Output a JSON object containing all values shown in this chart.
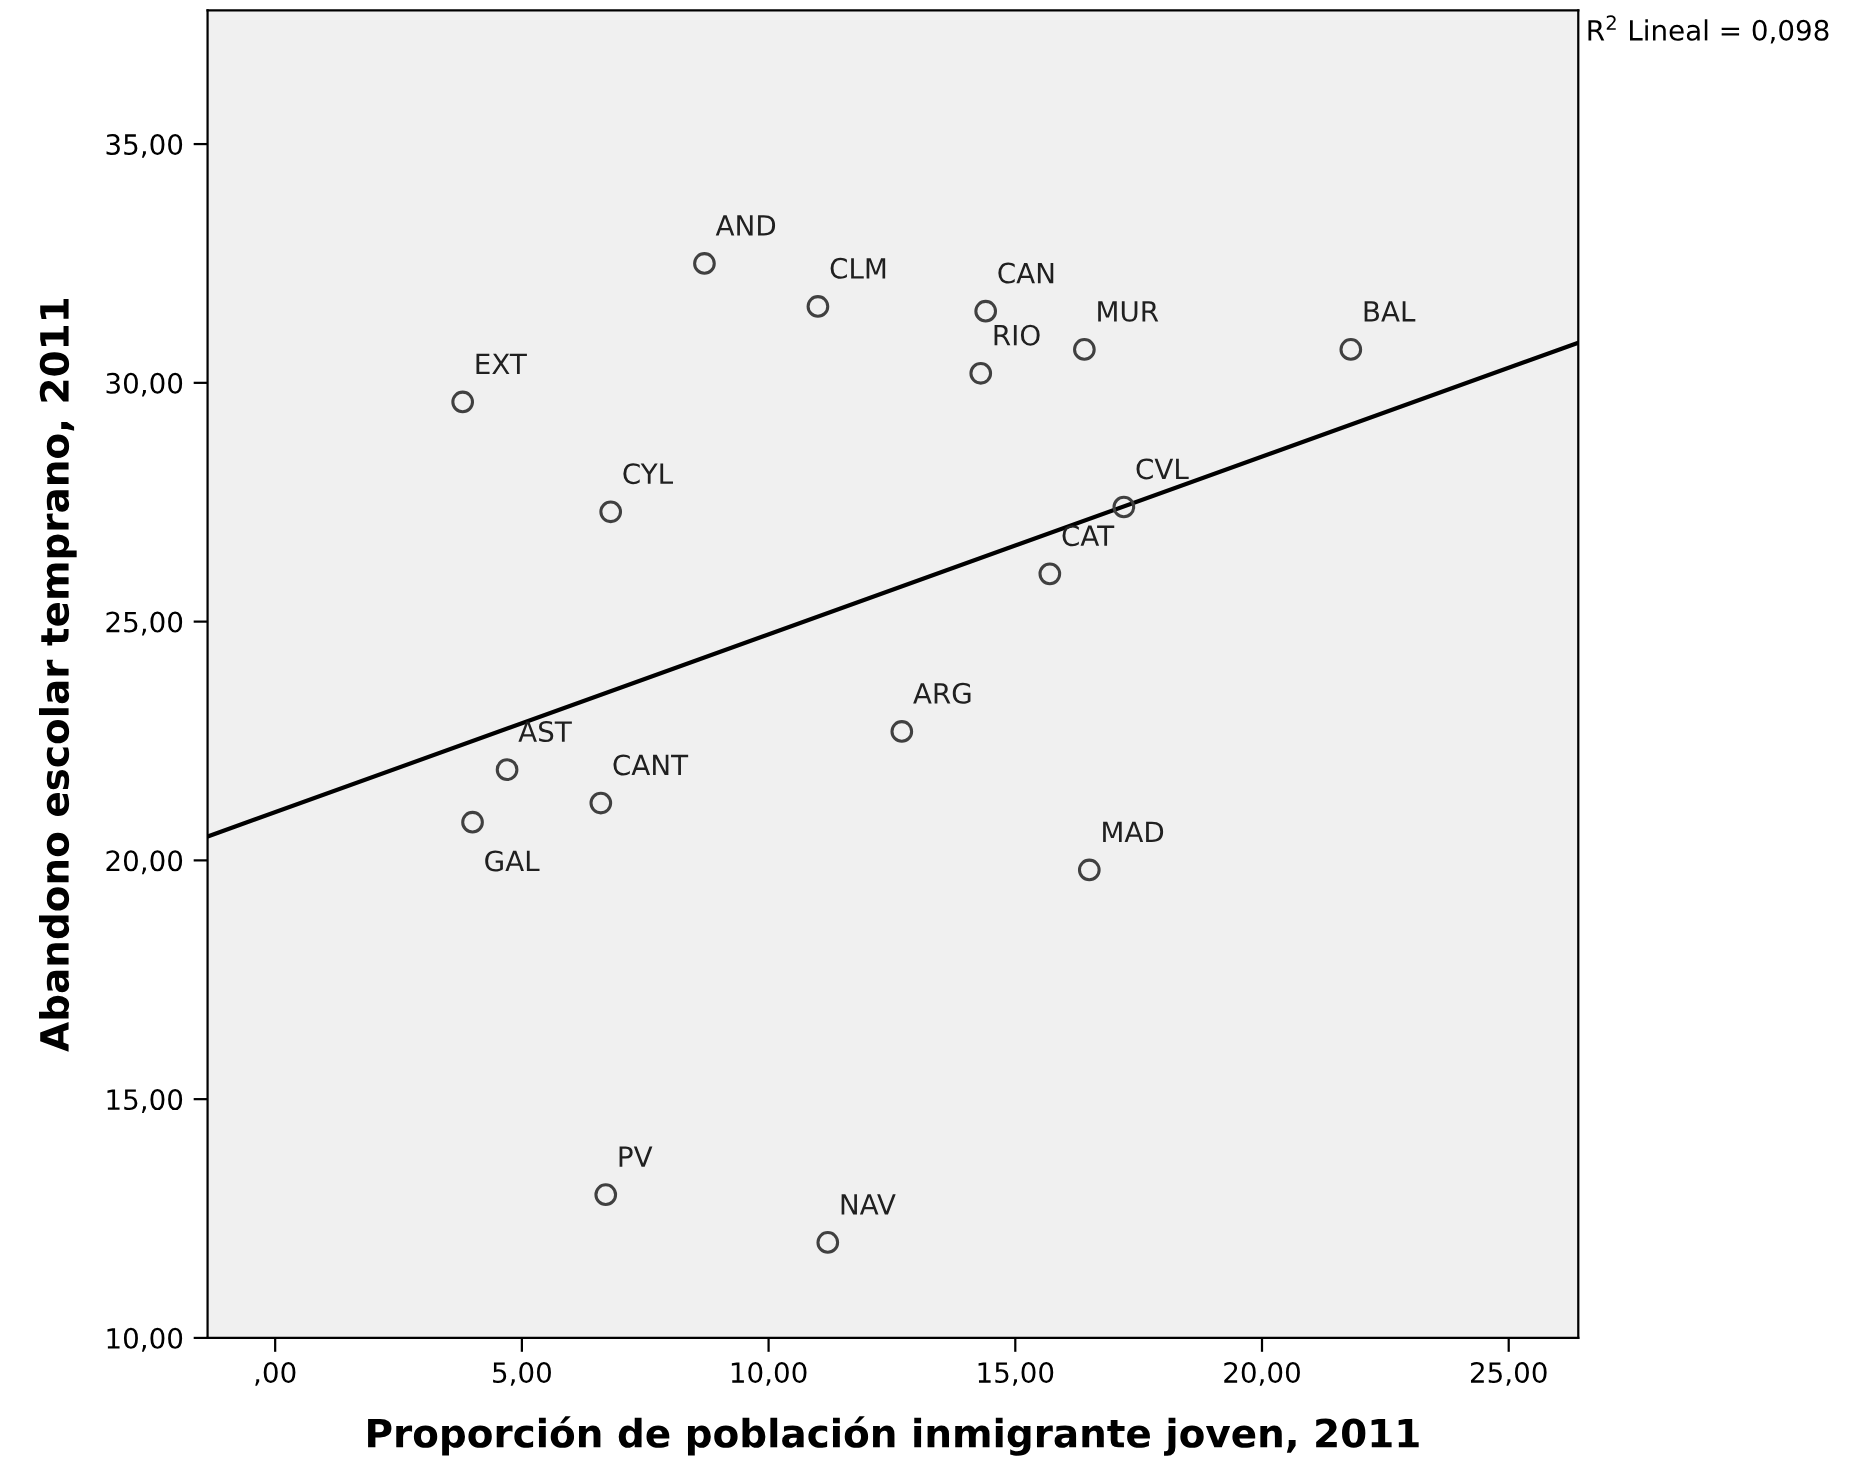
{
  "chart_data": {
    "type": "scatter",
    "xlabel": "Proporción de población inmigrante joven, 2011",
    "ylabel": "Abandono escolar temprano, 2011",
    "xlim": [
      -1.37,
      26.41
    ],
    "ylim": [
      10,
      37.8
    ],
    "xticks": [
      {
        "value": 0,
        "label": ",00"
      },
      {
        "value": 5,
        "label": "5,00"
      },
      {
        "value": 10,
        "label": "10,00"
      },
      {
        "value": 15,
        "label": "15,00"
      },
      {
        "value": 20,
        "label": "20,00"
      },
      {
        "value": 25,
        "label": "25,00"
      }
    ],
    "yticks": [
      {
        "value": 10,
        "label": "10,00"
      },
      {
        "value": 15,
        "label": "15,00"
      },
      {
        "value": 20,
        "label": "20,00"
      },
      {
        "value": 25,
        "label": "25,00"
      },
      {
        "value": 30,
        "label": "30,00"
      },
      {
        "value": 35,
        "label": "35,00"
      }
    ],
    "grid": false,
    "series": [
      {
        "marker": "circle",
        "color": "#404040",
        "x": [
          8.7,
          11.0,
          14.4,
          16.4,
          14.3,
          3.8,
          6.8,
          17.2,
          15.7,
          12.7,
          4.7,
          6.6,
          4.0,
          16.5,
          21.8,
          6.7,
          11.2
        ],
        "values": [
          32.5,
          31.6,
          31.5,
          30.7,
          30.2,
          29.6,
          27.3,
          27.4,
          26.0,
          22.7,
          21.9,
          21.2,
          20.8,
          19.8,
          30.7,
          13.0,
          12.0
        ]
      },
      {
        "type": "line",
        "marker": "none",
        "color": "#000000",
        "x": [
          -1.37,
          26.41
        ],
        "values": [
          20.5,
          30.84
        ]
      }
    ],
    "annotations": [
      {
        "text": "AND",
        "x": 8.7,
        "y": 32.5
      },
      {
        "text": "CLM",
        "x": 11.0,
        "y": 31.6
      },
      {
        "text": "CAN",
        "x": 14.4,
        "y": 31.5
      },
      {
        "text": "MUR",
        "x": 16.4,
        "y": 30.7
      },
      {
        "text": "RIO",
        "x": 14.3,
        "y": 30.2
      },
      {
        "text": "EXT",
        "x": 3.8,
        "y": 29.6
      },
      {
        "text": "CYL",
        "x": 6.8,
        "y": 27.3
      },
      {
        "text": "CVL",
        "x": 17.2,
        "y": 27.4
      },
      {
        "text": "CAT",
        "x": 15.7,
        "y": 26.0
      },
      {
        "text": "ARG",
        "x": 12.7,
        "y": 22.7
      },
      {
        "text": "AST",
        "x": 4.7,
        "y": 21.9
      },
      {
        "text": "CANT",
        "x": 6.6,
        "y": 21.2
      },
      {
        "text": "GAL",
        "x": 4.0,
        "y": 20.8
      },
      {
        "text": "MAD",
        "x": 16.5,
        "y": 19.8
      },
      {
        "text": "BAL",
        "x": 21.8,
        "y": 30.7
      },
      {
        "text": "PV",
        "x": 6.7,
        "y": 13.0
      },
      {
        "text": "NAV",
        "x": 11.2,
        "y": 12.0
      },
      "R$^{2}$ Lineal = 0,098"
    ]
  }
}
